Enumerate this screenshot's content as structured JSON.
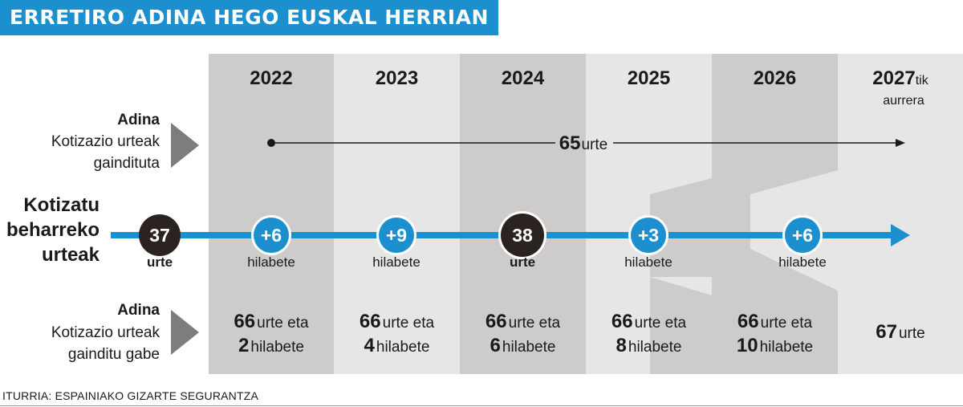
{
  "title": "ERRETIRO ADINA HEGO EUSKAL HERRIAN",
  "years": [
    {
      "year": "2022",
      "suffix": "",
      "sub": ""
    },
    {
      "year": "2023",
      "suffix": "",
      "sub": ""
    },
    {
      "year": "2024",
      "suffix": "",
      "sub": ""
    },
    {
      "year": "2025",
      "suffix": "",
      "sub": ""
    },
    {
      "year": "2026",
      "suffix": "",
      "sub": ""
    },
    {
      "year": "2027",
      "suffix": "tik",
      "sub": "aurrera"
    }
  ],
  "row1": {
    "label_bold": "Adina",
    "label_lines": [
      "Kotizazio urteak",
      "gaindituta"
    ],
    "age_number": "65",
    "age_unit": "urte"
  },
  "row2": {
    "label_lines": [
      "Kotizatu",
      "beharreko",
      "urteak"
    ],
    "start": {
      "value": "37",
      "unit": "urte"
    },
    "nodes": [
      {
        "value": "+6",
        "unit": "hilabete",
        "dark": false
      },
      {
        "value": "+9",
        "unit": "hilabete",
        "dark": false
      },
      {
        "value": "38",
        "unit": "urte",
        "dark": true
      },
      {
        "value": "+3",
        "unit": "hilabete",
        "dark": false
      },
      {
        "value": "+6",
        "unit": "hilabete",
        "dark": false
      }
    ]
  },
  "row3": {
    "label_bold": "Adina",
    "label_lines": [
      "Kotizazio urteak",
      "gainditu gabe"
    ],
    "cells": [
      {
        "years": "66",
        "years_unit": "urte eta",
        "months": "2",
        "months_unit": "hilabete"
      },
      {
        "years": "66",
        "years_unit": "urte eta",
        "months": "4",
        "months_unit": "hilabete"
      },
      {
        "years": "66",
        "years_unit": "urte eta",
        "months": "6",
        "months_unit": "hilabete"
      },
      {
        "years": "66",
        "years_unit": "urte eta",
        "months": "8",
        "months_unit": "hilabete"
      },
      {
        "years": "66",
        "years_unit": "urte eta",
        "months": "10",
        "months_unit": "hilabete"
      },
      {
        "years": "67",
        "years_unit": "urte",
        "months": "",
        "months_unit": ""
      }
    ]
  },
  "source": "ITURRIA: ESPAINIAKO GIZARTE SEGURANTZA",
  "colors": {
    "title_bg": "#1c8fcf",
    "blue": "#1c8fcf",
    "dark_node": "#2a2320",
    "col_dark": "#cdcccb",
    "col_light": "#e6e6e6",
    "label_arrow": "#7d7d7d"
  }
}
